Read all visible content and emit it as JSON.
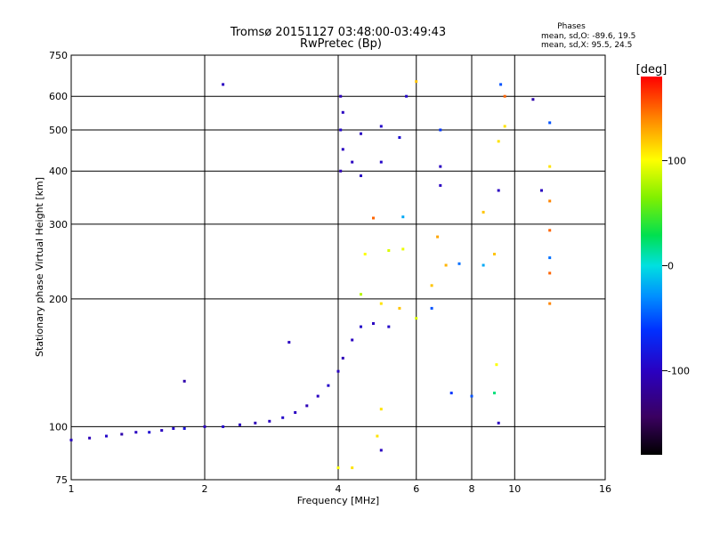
{
  "chart_data": {
    "type": "scatter",
    "title": "Tromsø 20151127 03:48:00-03:49:43",
    "subtitle": "RwPretec (Bp)",
    "xlabel": "Frequency [MHz]",
    "ylabel": "Stationary phase Virtual Height [km]",
    "x_scale": "log2",
    "y_scale": "log",
    "xlim": [
      1,
      16
    ],
    "ylim": [
      75,
      750
    ],
    "x_ticks": [
      1,
      2,
      4,
      6,
      8,
      10,
      16
    ],
    "x_tick_labels": [
      "1",
      "2",
      "4",
      "6",
      "8",
      "10",
      "16"
    ],
    "y_ticks": [
      75,
      100,
      200,
      300,
      400,
      500,
      600,
      750
    ],
    "y_tick_labels": [
      "75",
      "100",
      "200",
      "300",
      "400",
      "500",
      "600",
      "750"
    ],
    "grid": true,
    "stats": {
      "heading": "Phases",
      "line1": "mean, sd,O: -89.6, 19.5",
      "line2": "mean, sd,X:  95.5, 24.5"
    },
    "colorbar": {
      "label": "[deg]",
      "range": [
        -180,
        180
      ],
      "tick_labels": [
        "100",
        "0",
        "-100"
      ],
      "tick_values": [
        100,
        0,
        -100
      ]
    },
    "series": [
      {
        "points": [
          [
            1.0,
            93,
            -100
          ],
          [
            1.1,
            94,
            -105
          ],
          [
            1.2,
            95,
            -95
          ],
          [
            1.3,
            96,
            -110
          ],
          [
            1.4,
            97,
            -100
          ],
          [
            1.5,
            97,
            -90
          ],
          [
            1.6,
            98,
            -100
          ],
          [
            1.7,
            99,
            -95
          ],
          [
            1.8,
            99,
            -85
          ],
          [
            2.0,
            100,
            -100
          ],
          [
            2.2,
            100,
            -95
          ],
          [
            2.4,
            101,
            -100
          ],
          [
            2.6,
            102,
            -105
          ],
          [
            2.8,
            103,
            -100
          ],
          [
            3.0,
            105,
            -95
          ],
          [
            3.2,
            108,
            -100
          ],
          [
            3.4,
            112,
            -105
          ],
          [
            3.6,
            118,
            -100
          ],
          [
            3.8,
            125,
            -95
          ],
          [
            4.0,
            135,
            -100
          ],
          [
            4.1,
            145,
            -105
          ],
          [
            4.3,
            160,
            -100
          ],
          [
            4.5,
            172,
            -95
          ],
          [
            4.8,
            175,
            -100
          ],
          [
            5.2,
            172,
            -95
          ],
          [
            3.1,
            158,
            -100
          ],
          [
            1.8,
            128,
            -110
          ],
          [
            2.2,
            640,
            -100
          ],
          [
            4.05,
            400,
            -105
          ],
          [
            4.1,
            450,
            -100
          ],
          [
            4.05,
            500,
            -95
          ],
          [
            4.1,
            550,
            -100
          ],
          [
            4.05,
            600,
            -105
          ],
          [
            4.5,
            390,
            -100
          ],
          [
            5.0,
            420,
            -95
          ],
          [
            5.5,
            480,
            -90
          ],
          [
            5.7,
            600,
            -95
          ],
          [
            4.5,
            490,
            -100
          ],
          [
            5.0,
            510,
            -95
          ],
          [
            4.3,
            420,
            -100
          ],
          [
            4.6,
            255,
            100
          ],
          [
            5.2,
            260,
            90
          ],
          [
            5.6,
            262,
            95
          ],
          [
            4.5,
            205,
            80
          ],
          [
            5.0,
            195,
            110
          ],
          [
            5.5,
            190,
            120
          ],
          [
            4.8,
            310,
            150
          ],
          [
            5.6,
            312,
            -20
          ],
          [
            6.5,
            215,
            120
          ],
          [
            7.0,
            240,
            125
          ],
          [
            7.5,
            242,
            -40
          ],
          [
            8.5,
            240,
            -20
          ],
          [
            6.5,
            190,
            -50
          ],
          [
            6.0,
            180,
            90
          ],
          [
            7.2,
            120,
            -60
          ],
          [
            8.0,
            118,
            -50
          ],
          [
            9.0,
            120,
            20
          ],
          [
            5.0,
            110,
            110
          ],
          [
            4.9,
            95,
            110
          ],
          [
            5.0,
            88,
            -100
          ],
          [
            6.8,
            500,
            -60
          ],
          [
            6.8,
            410,
            -100
          ],
          [
            6.8,
            370,
            -100
          ],
          [
            8.5,
            320,
            120
          ],
          [
            9.2,
            360,
            -100
          ],
          [
            9.3,
            640,
            -50
          ],
          [
            9.5,
            600,
            150
          ],
          [
            9.5,
            510,
            110
          ],
          [
            9.2,
            470,
            110
          ],
          [
            11.0,
            590,
            -110
          ],
          [
            11.5,
            360,
            -100
          ],
          [
            12.0,
            520,
            -50
          ],
          [
            12.0,
            410,
            110
          ],
          [
            12.0,
            340,
            140
          ],
          [
            12.0,
            290,
            150
          ],
          [
            12.0,
            250,
            -40
          ],
          [
            12.0,
            230,
            150
          ],
          [
            12.0,
            195,
            140
          ],
          [
            9.0,
            255,
            120
          ],
          [
            9.1,
            140,
            100
          ],
          [
            9.2,
            102,
            -100
          ],
          [
            4.0,
            80,
            100
          ],
          [
            4.3,
            80,
            110
          ],
          [
            6.7,
            280,
            130
          ],
          [
            6.0,
            650,
            120
          ]
        ]
      }
    ]
  }
}
